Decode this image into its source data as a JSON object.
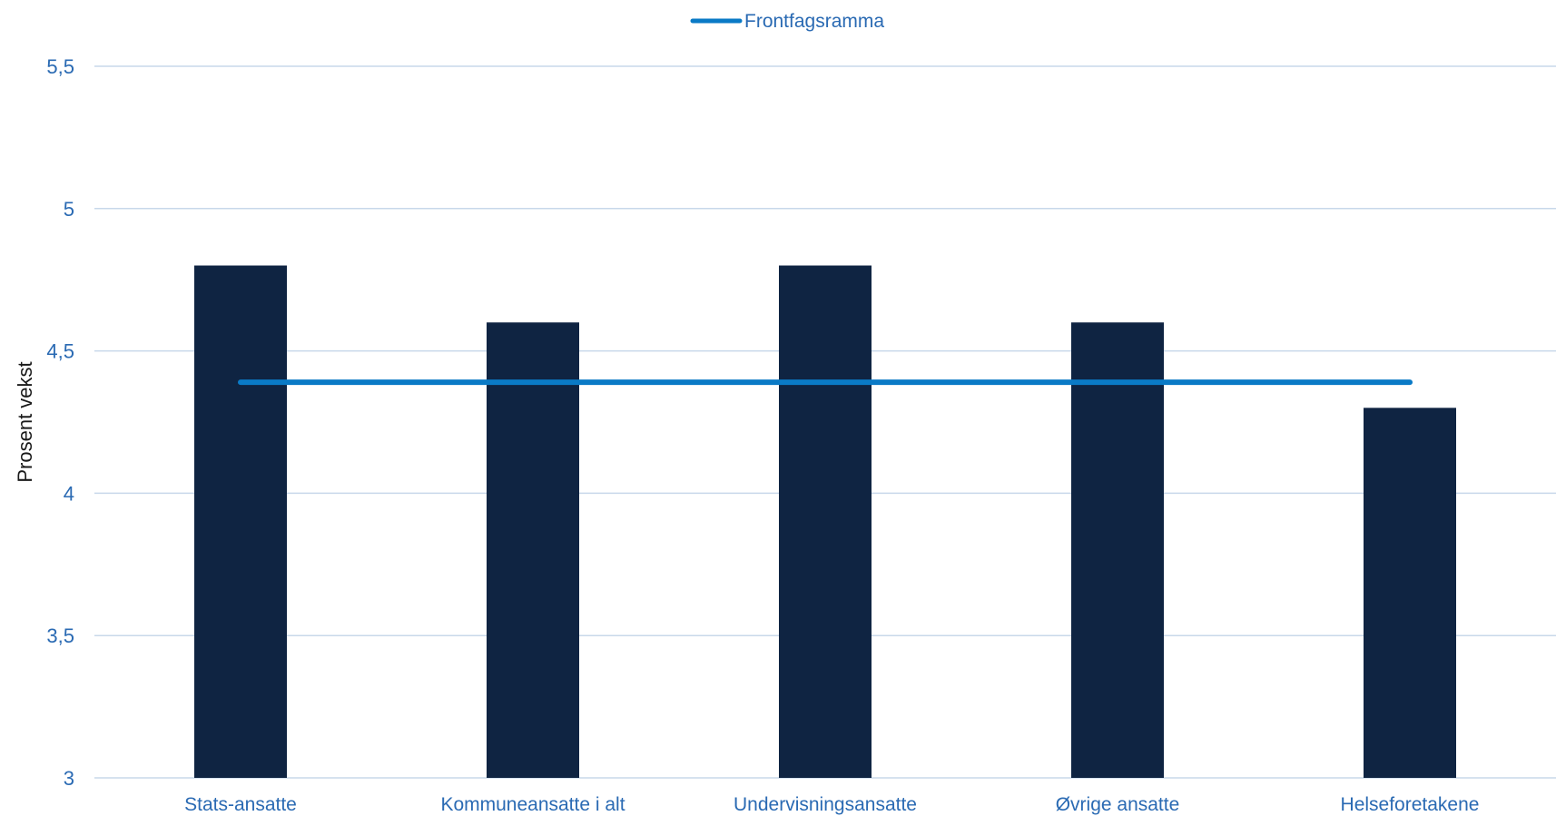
{
  "chart_data": {
    "type": "bar",
    "categories": [
      "Stats-ansatte",
      "Kommuneansatte i alt",
      "Undervisningsansatte",
      "Øvrige ansatte",
      "Helseforetakene"
    ],
    "series": [
      {
        "values": [
          4.8,
          4.6,
          4.8,
          4.6,
          4.3
        ]
      }
    ],
    "reference_line": {
      "name": "Frontfagsramma",
      "value": 4.39
    },
    "ylabel": "Prosent vekst",
    "ylim": [
      3,
      5.5
    ],
    "yticks": [
      "3",
      "3,5",
      "4",
      "4,5",
      "5",
      "5,5"
    ],
    "ytick_values": [
      3,
      3.5,
      4,
      4.5,
      5,
      5.5
    ],
    "grid": true,
    "legend_position": "top-center"
  },
  "colors": {
    "bar": "#0f2442",
    "reference_line": "#0a7ac6",
    "gridline": "#c8d8ea",
    "tick_text": "#2a6ab3",
    "axis_label_text": "#1a1a1a"
  }
}
